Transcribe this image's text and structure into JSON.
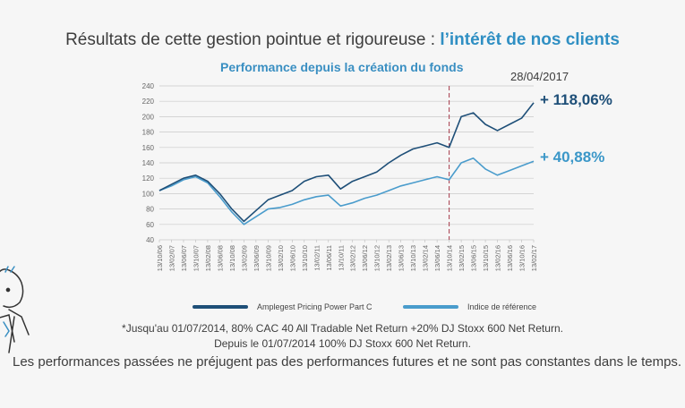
{
  "header": {
    "headline_part1": "Résultats de cette gestion pointue et rigoureuse : ",
    "headline_part2": "l’intérêt de nos clients"
  },
  "colors": {
    "fund": "#1e4f78",
    "benchmark": "#4a9ccc",
    "accent": "#2f8fc3",
    "marker": "#a5394a"
  },
  "chart_data": {
    "type": "line",
    "title": "Performance depuis la création du fonds",
    "date_label": "28/04/2017",
    "ylim": [
      40,
      240
    ],
    "yticks": [
      40,
      60,
      80,
      100,
      120,
      140,
      160,
      180,
      200,
      220,
      240
    ],
    "categories": [
      "13/10/06",
      "13/02/07",
      "13/06/07",
      "13/10/07",
      "13/02/08",
      "13/06/08",
      "13/10/08",
      "13/02/09",
      "13/06/09",
      "13/10/09",
      "13/02/10",
      "13/06/10",
      "13/10/10",
      "13/02/11",
      "13/06/11",
      "13/10/11",
      "13/02/12",
      "13/06/12",
      "13/10/12",
      "13/02/13",
      "13/06/13",
      "13/10/13",
      "13/02/14",
      "13/06/14",
      "13/10/14",
      "13/02/15",
      "13/06/15",
      "13/10/15",
      "13/02/16",
      "13/06/16",
      "13/10/16",
      "13/02/17"
    ],
    "series": [
      {
        "name": "Amplegest Pricing Power Part C",
        "label": "+ 118,06%",
        "values": [
          104,
          112,
          120,
          124,
          116,
          100,
          80,
          64,
          78,
          92,
          98,
          104,
          116,
          122,
          124,
          106,
          116,
          122,
          128,
          140,
          150,
          158,
          162,
          166,
          160,
          200,
          205,
          190,
          182,
          190,
          198,
          218
        ]
      },
      {
        "name": "Indice de référence",
        "label": "+ 40,88%",
        "values": [
          104,
          110,
          118,
          122,
          114,
          96,
          76,
          60,
          70,
          80,
          82,
          86,
          92,
          96,
          98,
          84,
          88,
          94,
          98,
          104,
          110,
          114,
          118,
          122,
          118,
          140,
          146,
          132,
          124,
          130,
          136,
          142
        ]
      }
    ],
    "annotations": [
      {
        "type": "vertical-dashed-line",
        "x": "13/10/14"
      }
    ]
  },
  "notes": {
    "line1": "*Jusqu'au 01/07/2014, 80% CAC 40 All Tradable Net Return +20% DJ Stoxx 600 Net Return.",
    "line2": "Depuis le 01/07/2014 100% DJ Stoxx 600 Net Return.",
    "disclaimer": "Les performances passées ne préjugent pas des performances futures et ne sont pas constantes dans le temps."
  }
}
